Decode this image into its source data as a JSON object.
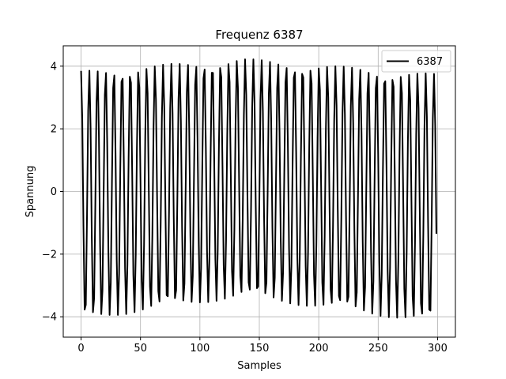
{
  "chart_data": {
    "type": "line",
    "title": "Frequenz 6387",
    "xlabel": "Samples",
    "ylabel": "Spannung",
    "xlim": [
      -15,
      315
    ],
    "ylim": [
      -4.65,
      4.65
    ],
    "xticks": [
      0,
      50,
      100,
      150,
      200,
      250,
      300
    ],
    "yticks": [
      -4,
      -2,
      0,
      2,
      4
    ],
    "grid": true,
    "legend_position": "top-right",
    "series": [
      {
        "name": "6387",
        "color": "#000000",
        "x_start": 0,
        "x_end": 299,
        "samples": 300,
        "cycles_per_sample": 0.1448,
        "peak_max_start": 3.85,
        "peak_max_center": 4.25,
        "peak_max_end": 3.75,
        "peak_min_start": -4.12,
        "peak_min_center": -3.38,
        "peak_min_end": -4.22,
        "peak_center_sample": 135
      }
    ]
  }
}
